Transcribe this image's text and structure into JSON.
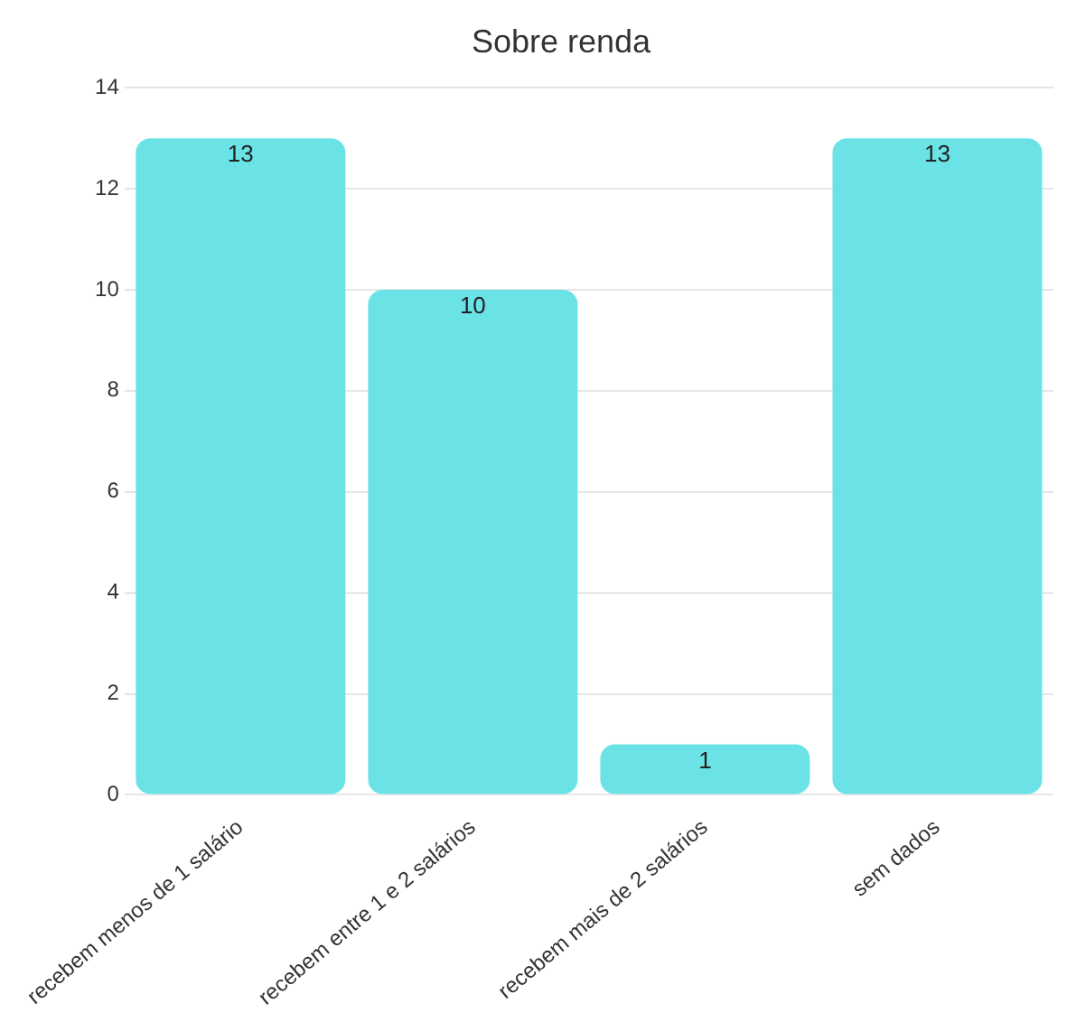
{
  "chart_data": {
    "type": "bar",
    "title": "Sobre renda",
    "categories": [
      "recebem menos de 1 salário",
      "recebem entre 1 e 2 salários",
      "recebem mais de 2 salários",
      "sem dados"
    ],
    "values": [
      13,
      10,
      1,
      13
    ],
    "color": "#6be3e6",
    "ylim": [
      0,
      14
    ],
    "yticks": [
      0,
      2,
      4,
      6,
      8,
      10,
      12,
      14
    ],
    "grid": "y",
    "data_labels": true
  }
}
